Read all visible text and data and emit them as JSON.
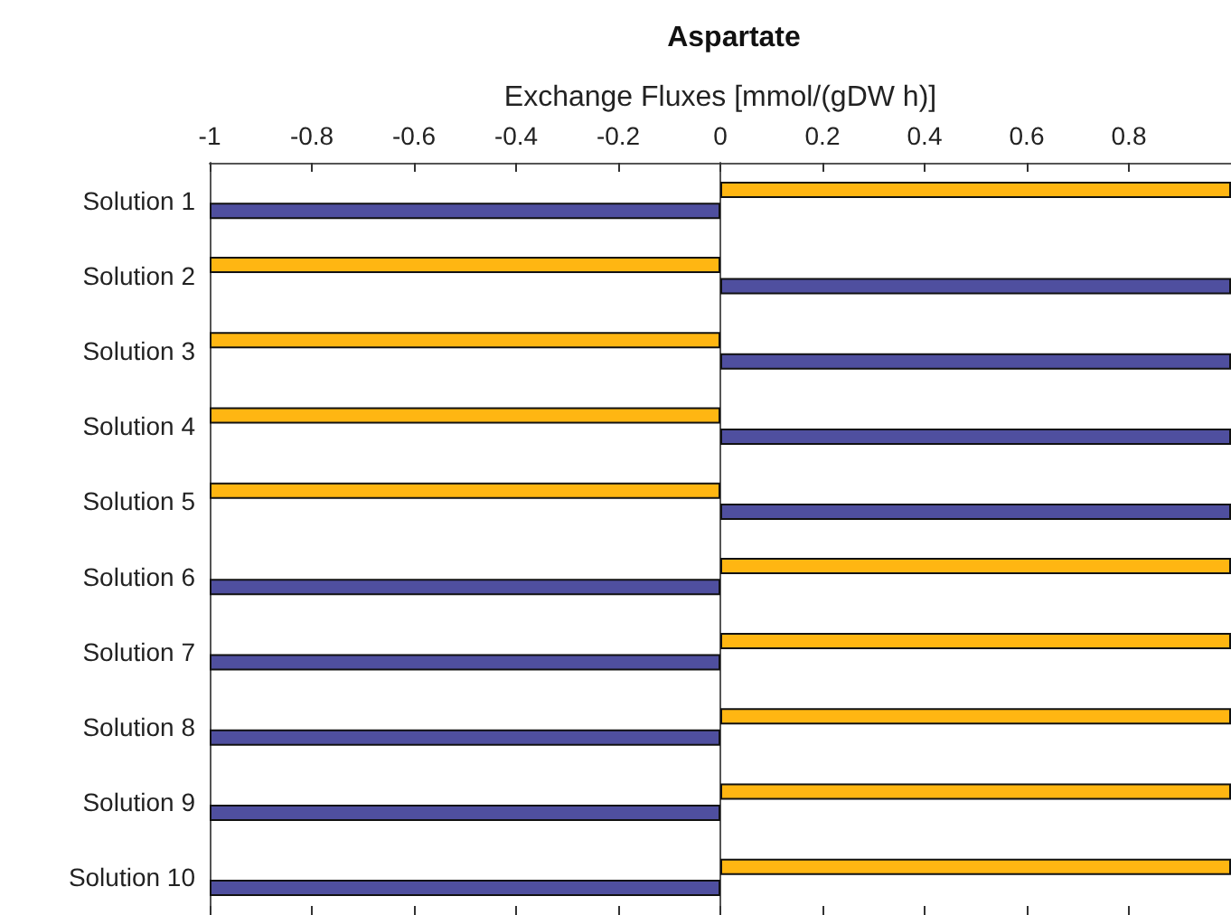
{
  "chart_data": {
    "type": "bar",
    "orientation": "horizontal",
    "title": "Aspartate",
    "xlabel": "Exchange Fluxes [mmol/(gDW h)]",
    "categories": [
      "Solution 1",
      "Solution 2",
      "Solution 3",
      "Solution 4",
      "Solution 5",
      "Solution 6",
      "Solution 7",
      "Solution 8",
      "Solution 9",
      "Solution 10"
    ],
    "series": [
      {
        "color": "#ffb612",
        "values": [
          1,
          -1,
          -1,
          -1,
          -1,
          1,
          1,
          1,
          1,
          1
        ]
      },
      {
        "color": "#4f4f9f",
        "values": [
          -1,
          1,
          1,
          1,
          1,
          -1,
          -1,
          -1,
          -1,
          -1
        ]
      }
    ],
    "xlim": [
      -1,
      1
    ],
    "xticks": [
      -1,
      -0.8,
      -0.6,
      -0.4,
      -0.2,
      0,
      0.2,
      0.4,
      0.6,
      0.8
    ]
  }
}
